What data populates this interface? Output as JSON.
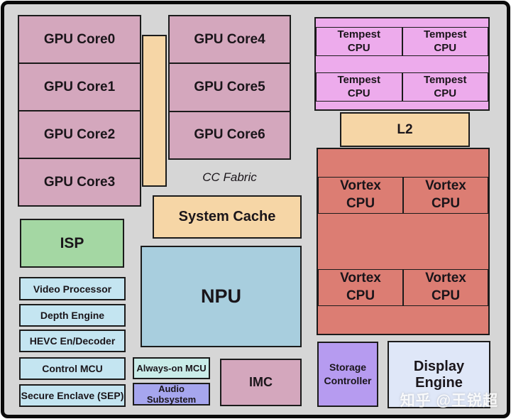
{
  "diagram": {
    "gpu": {
      "left_cores": [
        "GPU Core0",
        "GPU Core1",
        "GPU Core2",
        "GPU Core3"
      ],
      "right_cores": [
        "GPU Core4",
        "GPU Core5",
        "GPU Core6"
      ],
      "fabric_label": "CC Fabric"
    },
    "cache": {
      "system_cache": "System Cache",
      "l2": "L2"
    },
    "npu": "NPU",
    "isp": "ISP",
    "media": [
      "Video Processor",
      "Depth Engine",
      "HEVC En/Decoder",
      "Control MCU",
      "Secure Enclave (SEP)"
    ],
    "mcu": {
      "always_on": "Always-on MCU",
      "audio": "Audio Subsystem"
    },
    "imc": "IMC",
    "cpu": {
      "tempest": [
        {
          "l1": "Tempest",
          "l2": "CPU"
        },
        {
          "l1": "Tempest",
          "l2": "CPU"
        },
        {
          "l1": "Tempest",
          "l2": "CPU"
        },
        {
          "l1": "Tempest",
          "l2": "CPU"
        }
      ],
      "vortex": [
        {
          "l1": "Vortex",
          "l2": "CPU"
        },
        {
          "l1": "Vortex",
          "l2": "CPU"
        },
        {
          "l1": "Vortex",
          "l2": "CPU"
        },
        {
          "l1": "Vortex",
          "l2": "CPU"
        }
      ]
    },
    "io": {
      "storage": {
        "l1": "Storage",
        "l2": "Controller"
      },
      "display": "Display Engine"
    },
    "watermark": "知乎 @王锐超"
  },
  "colors": {
    "canvas_background": "#d6d6d6",
    "frame_border": "#0a0a0a",
    "block_border": "#1b1b1b",
    "gpu_pink": "#d4a7bd",
    "fabric_tan": "#f6d6a6",
    "tempest_violet": "#edabec",
    "vortex_salmon": "#dc7d73",
    "isp_green": "#a4d7a3",
    "media_blue": "#c4e5f1",
    "npu_blue": "#a8cede",
    "always_on_teal": "#c9ece8",
    "audio_periwinkle": "#a6a6ee",
    "storage_purple": "#b69bf0",
    "display_lavender": "#dfe7f8",
    "watermark_white": "#ffffff"
  }
}
